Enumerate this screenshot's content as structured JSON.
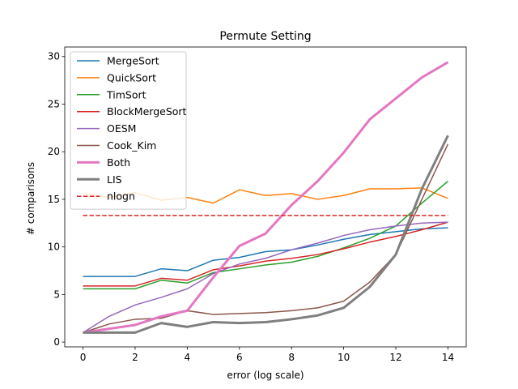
{
  "chart_data": {
    "type": "line",
    "title": "Permute Setting",
    "xlabel": "error (log scale)",
    "ylabel": "# comparisons",
    "xlim": [
      -0.7,
      14.7
    ],
    "ylim": [
      -0.5,
      31.0
    ],
    "xticks": [
      0,
      2,
      4,
      6,
      8,
      10,
      12,
      14
    ],
    "yticks": [
      0,
      5,
      10,
      15,
      20,
      25,
      30
    ],
    "grid": false,
    "legend_position": "top-left",
    "x": [
      0,
      1,
      2,
      3,
      4,
      5,
      6,
      7,
      8,
      9,
      10,
      11,
      12,
      13,
      14
    ],
    "series": [
      {
        "name": "MergeSort",
        "color": "#1f77b4",
        "width": 1.5,
        "dash": "",
        "values": [
          6.9,
          6.9,
          6.9,
          7.7,
          7.5,
          8.6,
          8.9,
          9.5,
          9.7,
          10.2,
          10.8,
          11.3,
          11.6,
          11.9,
          12.0
        ]
      },
      {
        "name": "QuickSort",
        "color": "#ff7f0e",
        "width": 1.5,
        "dash": "",
        "values": [
          15.6,
          15.2,
          15.7,
          14.9,
          15.2,
          14.6,
          16.0,
          15.4,
          15.6,
          15.0,
          15.4,
          16.1,
          16.1,
          16.2,
          15.1
        ]
      },
      {
        "name": "TimSort",
        "color": "#2ca02c",
        "width": 1.5,
        "dash": "",
        "values": [
          5.6,
          5.6,
          5.6,
          6.5,
          6.2,
          7.3,
          7.7,
          8.1,
          8.4,
          9.0,
          9.9,
          10.9,
          12.2,
          14.6,
          16.9
        ]
      },
      {
        "name": "BlockMergeSort",
        "color": "#d62728",
        "width": 1.5,
        "dash": "",
        "values": [
          5.9,
          5.9,
          5.9,
          6.7,
          6.5,
          7.6,
          8.0,
          8.5,
          8.8,
          9.2,
          9.8,
          10.5,
          11.1,
          11.8,
          12.6
        ]
      },
      {
        "name": "OESM",
        "color": "#9467bd",
        "width": 1.5,
        "dash": "",
        "values": [
          1.0,
          2.7,
          3.9,
          4.7,
          5.6,
          7.2,
          8.2,
          8.8,
          9.7,
          10.4,
          11.2,
          11.8,
          12.2,
          12.5,
          12.6
        ]
      },
      {
        "name": "Cook_Kim",
        "color": "#8c564b",
        "width": 1.5,
        "dash": "",
        "values": [
          1.0,
          1.9,
          2.4,
          2.5,
          3.3,
          2.9,
          3.0,
          3.1,
          3.3,
          3.6,
          4.3,
          6.3,
          9.2,
          15.0,
          20.8
        ]
      },
      {
        "name": "Both",
        "color": "#e377c2",
        "width": 3,
        "dash": "",
        "values": [
          1.0,
          1.4,
          1.8,
          2.7,
          3.3,
          6.8,
          10.1,
          11.4,
          14.4,
          16.9,
          19.9,
          23.4,
          25.6,
          27.8,
          29.4
        ]
      },
      {
        "name": "LIS",
        "color": "#7f7f7f",
        "width": 3,
        "dash": "",
        "values": [
          1.0,
          1.0,
          1.0,
          2.0,
          1.6,
          2.1,
          2.0,
          2.1,
          2.4,
          2.8,
          3.6,
          5.8,
          9.2,
          16.1,
          21.7
        ]
      },
      {
        "name": "nlogn",
        "color": "#d62728",
        "width": 1.5,
        "dash": "5.5,2.4",
        "values": [
          13.3,
          13.3,
          13.3,
          13.3,
          13.3,
          13.3,
          13.3,
          13.3,
          13.3,
          13.3,
          13.3,
          13.3,
          13.3,
          13.3,
          13.3
        ]
      }
    ]
  }
}
